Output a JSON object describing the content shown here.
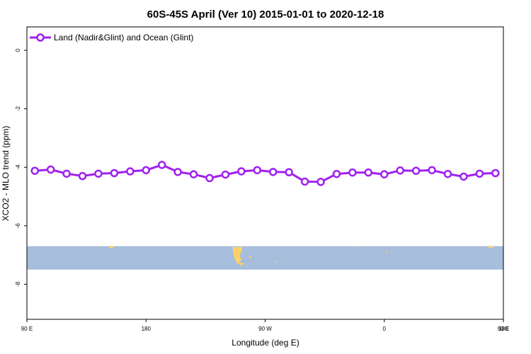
{
  "chart_data": {
    "type": "line",
    "title": "60S-45S April (Ver 10)   2015-01-01 to 2020-12-18",
    "xlabel": "Longitude (deg E)",
    "ylabel": "XCO2 - MLO trend (ppm)",
    "xlim": [
      90,
      450
    ],
    "ylim": [
      -9.2,
      0.8
    ],
    "x_ticks": [
      {
        "value": 90,
        "label": "90 E"
      },
      {
        "value": 180,
        "label": "180"
      },
      {
        "value": 270,
        "label": "90 W"
      },
      {
        "value": 360,
        "label": "0"
      },
      {
        "value": 450,
        "label": "90 E"
      },
      {
        "value": 540,
        "label": "180"
      }
    ],
    "y_ticks": [
      {
        "value": 0,
        "label": "0"
      },
      {
        "value": -2,
        "label": "-2"
      },
      {
        "value": -4,
        "label": "-4"
      },
      {
        "value": -6,
        "label": "-6"
      },
      {
        "value": -8,
        "label": "-8"
      }
    ],
    "series": [
      {
        "name": "Land (Nadir&Glint) and Ocean (Glint)",
        "color": "#a020f0",
        "x": [
          96,
          108,
          120,
          132,
          144,
          156,
          168,
          180,
          192,
          204,
          216,
          228,
          240,
          252,
          264,
          276,
          288,
          300,
          312,
          324,
          336,
          348,
          360,
          372,
          384,
          396,
          408,
          420,
          432,
          444
        ],
        "y": [
          -4.12,
          -4.08,
          -4.22,
          -4.3,
          -4.22,
          -4.2,
          -4.14,
          -4.1,
          -3.92,
          -4.16,
          -4.24,
          -4.37,
          -4.25,
          -4.14,
          -4.1,
          -4.16,
          -4.17,
          -4.49,
          -4.5,
          -4.23,
          -4.18,
          -4.18,
          -4.24,
          -4.11,
          -4.12,
          -4.1,
          -4.23,
          -4.32,
          -4.22,
          -4.2
        ]
      }
    ],
    "legend_position": "top-left",
    "grid": false,
    "map_strip": {
      "ocean_color": "#a6bddb",
      "land_color": "#fdd16a",
      "y_range": [
        -6.7,
        -7.5
      ]
    }
  }
}
